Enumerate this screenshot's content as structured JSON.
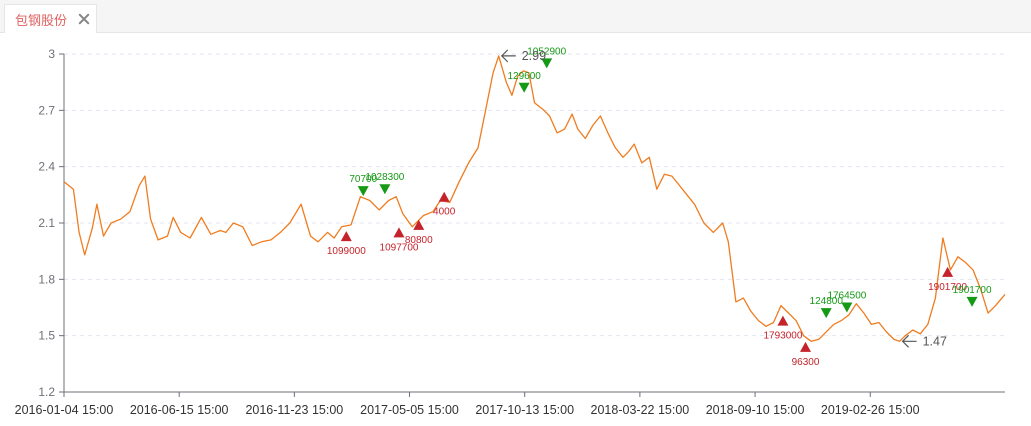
{
  "tab": {
    "label": "包钢股份"
  },
  "colors": {
    "line": "#f07c1f",
    "buy": "#c4232b",
    "sell": "#169a16",
    "axis": "#6e7079",
    "grid": "#e0e6f1",
    "extreme": "#555555"
  },
  "chart_data": {
    "type": "line",
    "title": "",
    "xlabel": "",
    "ylabel": "",
    "ylim": [
      1.2,
      3.0
    ],
    "yticks": [
      1.2,
      1.5,
      1.8,
      2.1,
      2.4,
      2.7,
      3
    ],
    "x_range": [
      0,
      100
    ],
    "x_tick_positions": [
      0,
      12.24,
      24.48,
      36.72,
      48.96,
      61.2,
      73.44,
      85.68
    ],
    "x_tick_labels": [
      "2016-01-04 15:00",
      "2016-06-15 15:00",
      "2016-11-23 15:00",
      "2017-05-05 15:00",
      "2017-10-13 15:00",
      "2018-03-22 15:00",
      "2018-09-10 15:00",
      "2019-02-26 15:00"
    ],
    "grid": "horizontal dashed",
    "series": [
      {
        "values": [
          [
            0,
            2.32
          ],
          [
            1,
            2.28
          ],
          [
            1.6,
            2.05
          ],
          [
            2.2,
            1.93
          ],
          [
            3,
            2.07
          ],
          [
            3.5,
            2.2
          ],
          [
            4.2,
            2.03
          ],
          [
            5,
            2.1
          ],
          [
            6,
            2.12
          ],
          [
            7,
            2.16
          ],
          [
            8,
            2.3
          ],
          [
            8.6,
            2.35
          ],
          [
            9.2,
            2.12
          ],
          [
            10,
            2.01
          ],
          [
            11,
            2.03
          ],
          [
            11.6,
            2.13
          ],
          [
            12.4,
            2.05
          ],
          [
            13.4,
            2.02
          ],
          [
            14.6,
            2.13
          ],
          [
            15.6,
            2.04
          ],
          [
            16.6,
            2.06
          ],
          [
            17.2,
            2.05
          ],
          [
            18,
            2.1
          ],
          [
            19,
            2.08
          ],
          [
            20,
            1.98
          ],
          [
            21,
            2.0
          ],
          [
            22,
            2.01
          ],
          [
            23,
            2.05
          ],
          [
            24,
            2.1
          ],
          [
            25.2,
            2.2
          ],
          [
            26.2,
            2.03
          ],
          [
            27,
            2.0
          ],
          [
            28,
            2.05
          ],
          [
            28.7,
            2.02
          ],
          [
            29.5,
            2.08
          ],
          [
            30.5,
            2.09
          ],
          [
            31.5,
            2.24
          ],
          [
            32.5,
            2.22
          ],
          [
            33.5,
            2.17
          ],
          [
            34.5,
            2.22
          ],
          [
            35.3,
            2.24
          ],
          [
            36,
            2.15
          ],
          [
            37,
            2.08
          ],
          [
            38.2,
            2.14
          ],
          [
            39.2,
            2.16
          ],
          [
            40,
            2.22
          ],
          [
            41,
            2.21
          ],
          [
            42,
            2.32
          ],
          [
            43,
            2.42
          ],
          [
            44,
            2.5
          ],
          [
            44.8,
            2.7
          ],
          [
            45.6,
            2.9
          ],
          [
            46.2,
            2.99
          ],
          [
            47,
            2.85
          ],
          [
            47.6,
            2.78
          ],
          [
            48.2,
            2.88
          ],
          [
            48.8,
            2.91
          ],
          [
            49.4,
            2.9
          ],
          [
            50,
            2.74
          ],
          [
            51,
            2.7
          ],
          [
            51.6,
            2.67
          ],
          [
            52.4,
            2.58
          ],
          [
            53.2,
            2.6
          ],
          [
            54,
            2.68
          ],
          [
            54.6,
            2.6
          ],
          [
            55.4,
            2.55
          ],
          [
            56.2,
            2.62
          ],
          [
            57,
            2.67
          ],
          [
            57.8,
            2.58
          ],
          [
            58.6,
            2.5
          ],
          [
            59.4,
            2.45
          ],
          [
            60,
            2.48
          ],
          [
            60.6,
            2.52
          ],
          [
            61.4,
            2.42
          ],
          [
            62.2,
            2.45
          ],
          [
            63,
            2.28
          ],
          [
            63.8,
            2.36
          ],
          [
            64.6,
            2.35
          ],
          [
            65.4,
            2.3
          ],
          [
            66.2,
            2.25
          ],
          [
            67,
            2.2
          ],
          [
            68,
            2.1
          ],
          [
            69,
            2.05
          ],
          [
            70,
            2.1
          ],
          [
            70.6,
            2.0
          ],
          [
            71.4,
            1.68
          ],
          [
            72.2,
            1.7
          ],
          [
            73,
            1.63
          ],
          [
            73.8,
            1.58
          ],
          [
            74.6,
            1.55
          ],
          [
            75.4,
            1.57
          ],
          [
            76.2,
            1.66
          ],
          [
            77,
            1.62
          ],
          [
            77.8,
            1.58
          ],
          [
            78.6,
            1.5
          ],
          [
            79.4,
            1.47
          ],
          [
            80.2,
            1.48
          ],
          [
            81,
            1.52
          ],
          [
            81.8,
            1.56
          ],
          [
            82.6,
            1.58
          ],
          [
            83.4,
            1.61
          ],
          [
            84.2,
            1.67
          ],
          [
            85,
            1.62
          ],
          [
            85.8,
            1.56
          ],
          [
            86.6,
            1.57
          ],
          [
            87.4,
            1.52
          ],
          [
            88.2,
            1.48
          ],
          [
            88.8,
            1.47
          ],
          [
            89.4,
            1.5
          ],
          [
            90.2,
            1.53
          ],
          [
            91,
            1.51
          ],
          [
            91.8,
            1.56
          ],
          [
            92.6,
            1.7
          ],
          [
            93.4,
            2.02
          ],
          [
            94.2,
            1.85
          ],
          [
            95,
            1.92
          ],
          [
            95.8,
            1.89
          ],
          [
            96.6,
            1.85
          ],
          [
            97.4,
            1.75
          ],
          [
            98.2,
            1.62
          ],
          [
            99,
            1.66
          ],
          [
            100,
            1.72
          ]
        ]
      }
    ],
    "buy_markers": [
      {
        "x": 30.0,
        "y": 2.03,
        "label": "1099000"
      },
      {
        "x": 35.6,
        "y": 2.05,
        "label": "1097700"
      },
      {
        "x": 37.7,
        "y": 2.09,
        "label": "80800"
      },
      {
        "x": 40.4,
        "y": 2.24,
        "label": "4000"
      },
      {
        "x": 76.4,
        "y": 1.58,
        "label": "1793000"
      },
      {
        "x": 78.8,
        "y": 1.44,
        "label": "96300"
      },
      {
        "x": 93.9,
        "y": 1.84,
        "label": "1901700"
      }
    ],
    "sell_markers": [
      {
        "x": 31.8,
        "y": 2.27,
        "label": "70700"
      },
      {
        "x": 34.1,
        "y": 2.28,
        "label": "1028300"
      },
      {
        "x": 48.9,
        "y": 2.82,
        "label": "129600"
      },
      {
        "x": 51.3,
        "y": 2.95,
        "label": "1052900"
      },
      {
        "x": 81.0,
        "y": 1.62,
        "label": "124800"
      },
      {
        "x": 83.2,
        "y": 1.65,
        "label": "1764500"
      },
      {
        "x": 96.5,
        "y": 1.68,
        "label": "1901700"
      }
    ],
    "extremes": [
      {
        "x": 46.2,
        "y": 2.99,
        "label": "2.99",
        "kind": "max"
      },
      {
        "x": 88.8,
        "y": 1.47,
        "label": "1.47",
        "kind": "min"
      }
    ]
  }
}
